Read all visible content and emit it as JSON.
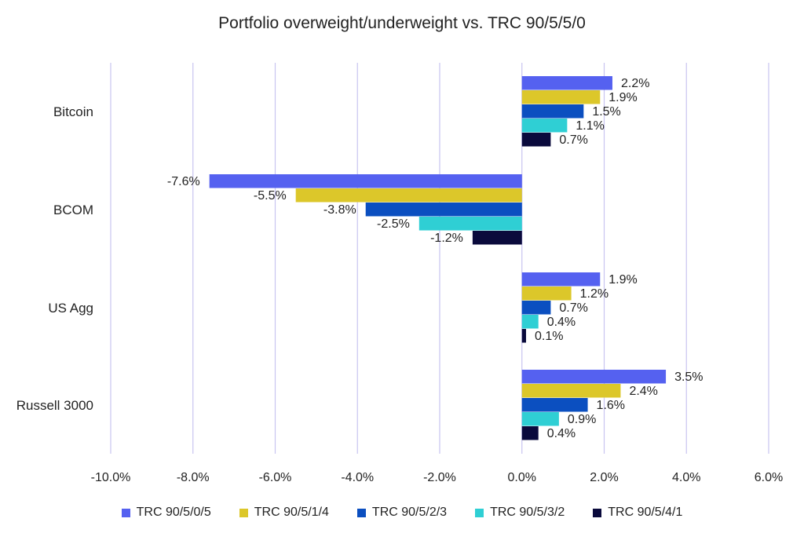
{
  "chart_data": {
    "type": "bar",
    "orientation": "horizontal",
    "title": "Portfolio overweight/underweight vs. TRC 90/5/5/0",
    "categories": [
      "Bitcoin",
      "BCOM",
      "US Agg",
      "Russell 3000"
    ],
    "series": [
      {
        "name": "TRC 90/5/0/5",
        "color": "#5561f0",
        "values": [
          2.2,
          -7.6,
          1.9,
          3.5
        ],
        "labels": [
          "2.2%",
          "-7.6%",
          "1.9%",
          "3.5%"
        ]
      },
      {
        "name": "TRC 90/5/1/4",
        "color": "#dcc72a",
        "values": [
          1.9,
          -5.5,
          1.2,
          2.4
        ],
        "labels": [
          "1.9%",
          "-5.5%",
          "1.2%",
          "2.4%"
        ]
      },
      {
        "name": "TRC 90/5/2/3",
        "color": "#0b4fc0",
        "values": [
          1.5,
          -3.8,
          0.7,
          1.6
        ],
        "labels": [
          "1.5%",
          "-3.8%",
          "0.7%",
          "1.6%"
        ]
      },
      {
        "name": "TRC 90/5/3/2",
        "color": "#2fcfd4",
        "values": [
          1.1,
          -2.5,
          0.4,
          0.9
        ],
        "labels": [
          "1.1%",
          "-2.5%",
          "0.4%",
          "0.9%"
        ]
      },
      {
        "name": "TRC 90/5/4/1",
        "color": "#0a0a3c",
        "values": [
          0.7,
          -1.2,
          0.1,
          0.4
        ],
        "labels": [
          "0.7%",
          "-1.2%",
          "0.1%",
          "0.4%"
        ]
      }
    ],
    "xlim": [
      -10,
      6
    ],
    "xticks": [
      -10,
      -8,
      -6,
      -4,
      -2,
      0,
      2,
      4,
      6
    ],
    "xtick_labels": [
      "-10.0%",
      "-8.0%",
      "-6.0%",
      "-4.0%",
      "-2.0%",
      "0.0%",
      "2.0%",
      "4.0%",
      "6.0%"
    ],
    "grid": "vertical",
    "gridline_color": "#c8c4f0",
    "legend_position": "bottom"
  }
}
